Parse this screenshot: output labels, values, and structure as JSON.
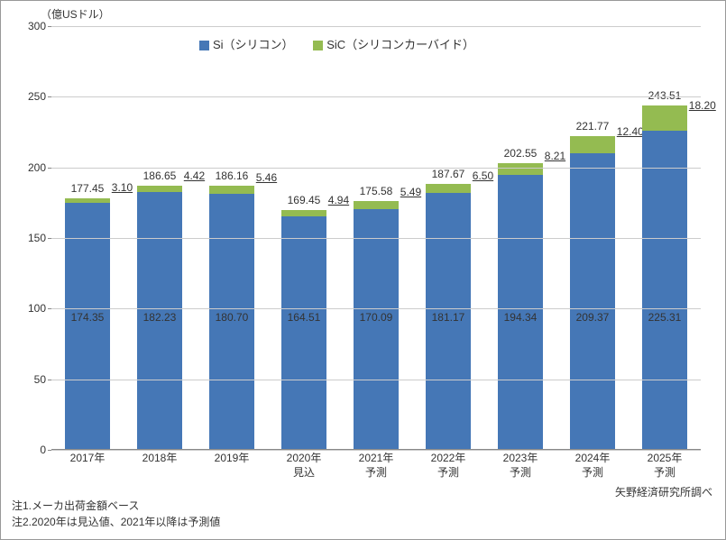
{
  "chart": {
    "type": "stacked-bar",
    "y_unit_label": "（億USドル）",
    "ylim": [
      0,
      300
    ],
    "ytick_step": 50,
    "yticks": [
      0,
      50,
      100,
      150,
      200,
      250,
      300
    ],
    "grid_color": "#cccccc",
    "axis_color": "#888888",
    "background_color": "#ffffff",
    "label_fontsize": 12,
    "bar_width_ratio": 0.62,
    "series": {
      "si": {
        "label": "Si（シリコン）",
        "color": "#4577b6"
      },
      "sic": {
        "label": "SiC（シリコンカーバイド）",
        "color": "#94bb51"
      }
    },
    "categories": [
      "2017年",
      "2018年",
      "2019年",
      "2020年\n見込",
      "2021年\n予測",
      "2022年\n予測",
      "2023年\n予測",
      "2024年\n予測",
      "2025年\n予測"
    ],
    "data": [
      {
        "si": 174.35,
        "sic": 3.1,
        "total": 177.45,
        "si_label": "174.35",
        "sic_label": "3.10",
        "total_label": "177.45"
      },
      {
        "si": 182.23,
        "sic": 4.42,
        "total": 186.65,
        "si_label": "182.23",
        "sic_label": "4.42",
        "total_label": "186.65"
      },
      {
        "si": 180.7,
        "sic": 5.46,
        "total": 186.16,
        "si_label": "180.70",
        "sic_label": "5.46",
        "total_label": "186.16"
      },
      {
        "si": 164.51,
        "sic": 4.94,
        "total": 169.45,
        "si_label": "164.51",
        "sic_label": "4.94",
        "total_label": "169.45"
      },
      {
        "si": 170.09,
        "sic": 5.49,
        "total": 175.58,
        "si_label": "170.09",
        "sic_label": "5.49",
        "total_label": "175.58"
      },
      {
        "si": 181.17,
        "sic": 6.5,
        "total": 187.67,
        "si_label": "181.17",
        "sic_label": "6.50",
        "total_label": "187.67"
      },
      {
        "si": 194.34,
        "sic": 8.21,
        "total": 202.55,
        "si_label": "194.34",
        "sic_label": "8.21",
        "total_label": "202.55"
      },
      {
        "si": 209.37,
        "sic": 12.4,
        "total": 221.77,
        "si_label": "209.37",
        "sic_label": "12.40",
        "total_label": "221.77"
      },
      {
        "si": 225.31,
        "sic": 18.2,
        "total": 243.51,
        "si_label": "225.31",
        "sic_label": "18.20",
        "total_label": "243.51"
      }
    ]
  },
  "notes": {
    "line1": "注1.メーカ出荷金額ベース",
    "line2": "注2.2020年は見込値、2021年以降は予測値"
  },
  "source": "矢野経済研究所調べ"
}
